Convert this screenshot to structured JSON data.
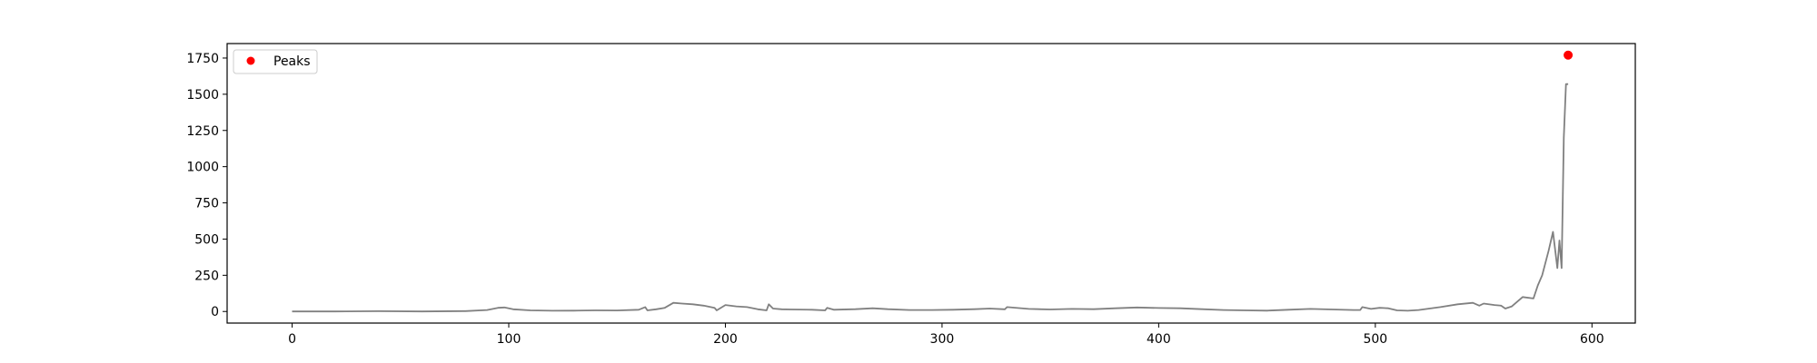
{
  "chart_data": {
    "type": "line",
    "title": "",
    "xlabel": "",
    "ylabel": "",
    "xlim": [
      -30,
      620
    ],
    "ylim": [
      -80,
      1850
    ],
    "xticks": [
      0,
      100,
      200,
      300,
      400,
      500,
      600
    ],
    "yticks": [
      0,
      250,
      500,
      750,
      1000,
      1250,
      1500,
      1750
    ],
    "grid": false,
    "legend": {
      "placement": "top-left",
      "entries": [
        "Peaks"
      ]
    },
    "colors": {
      "line": "#808080",
      "peaks": "#ff0000"
    },
    "series": [
      {
        "style": "line",
        "x": [
          0,
          20,
          40,
          60,
          80,
          90,
          95,
          98,
          102,
          110,
          120,
          130,
          140,
          150,
          160,
          163,
          164,
          168,
          172,
          176,
          180,
          185,
          190,
          195,
          196,
          200,
          205,
          210,
          215,
          219,
          220,
          222,
          226,
          230,
          240,
          246,
          247,
          250,
          260,
          268,
          275,
          285,
          295,
          305,
          315,
          322,
          329,
          330,
          340,
          350,
          360,
          370,
          380,
          390,
          400,
          410,
          420,
          430,
          440,
          450,
          460,
          470,
          480,
          490,
          493,
          494,
          498,
          502,
          506,
          510,
          515,
          520,
          530,
          538,
          545,
          548,
          550,
          555,
          558,
          560,
          563,
          568,
          573,
          575,
          577,
          580,
          582,
          584,
          585,
          586,
          587,
          588,
          589
        ],
        "y": [
          0,
          0,
          2,
          0,
          3,
          10,
          25,
          28,
          15,
          8,
          5,
          6,
          8,
          7,
          12,
          30,
          8,
          15,
          25,
          60,
          55,
          50,
          40,
          25,
          8,
          45,
          35,
          30,
          15,
          8,
          50,
          20,
          15,
          14,
          12,
          8,
          25,
          12,
          16,
          22,
          16,
          10,
          10,
          12,
          16,
          20,
          15,
          30,
          18,
          14,
          18,
          16,
          22,
          28,
          24,
          22,
          16,
          10,
          8,
          6,
          12,
          18,
          14,
          10,
          10,
          30,
          18,
          25,
          22,
          8,
          5,
          10,
          30,
          50,
          60,
          40,
          55,
          45,
          40,
          20,
          35,
          100,
          90,
          180,
          250,
          420,
          550,
          300,
          490,
          300,
          1200,
          1570,
          1570
        ]
      },
      {
        "name": "Peaks",
        "style": "scatter",
        "x": [
          589
        ],
        "y": [
          1770
        ]
      }
    ]
  }
}
